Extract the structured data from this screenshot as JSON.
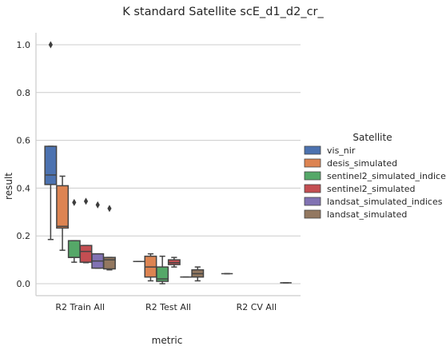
{
  "chart_data": {
    "type": "box",
    "title": "K standard Satellite scE_d1_d2_cr_",
    "xlabel": "metric",
    "ylabel": "result",
    "categories": [
      "R2 Train All",
      "R2 Test All",
      "R2 CV All"
    ],
    "ylim": [
      -0.05,
      1.05
    ],
    "yticks": [
      "0.0",
      "0.2",
      "0.4",
      "0.6",
      "0.8",
      "1.0"
    ],
    "grid": "horizontal",
    "legend": {
      "title": "Satellite",
      "placement": "right",
      "entries": [
        "vis_nir",
        "desis_simulated",
        "sentinel2_simulated_indices",
        "sentinel2_simulated",
        "landsat_simulated_indices",
        "landsat_simulated"
      ]
    },
    "colors": [
      "#4c72b0",
      "#dd8452",
      "#55a868",
      "#c44e52",
      "#8172b3",
      "#937860"
    ],
    "series": [
      {
        "name": "vis_nir",
        "boxes": [
          {
            "q1": 0.415,
            "median": 0.455,
            "q3": 0.575,
            "whislo": 0.185,
            "whishi": 0.575,
            "fliers": [
              1.0
            ]
          },
          {
            "q1": 0.093,
            "median": 0.093,
            "q3": 0.093,
            "whislo": 0.093,
            "whishi": 0.093,
            "fliers": []
          },
          {
            "q1": 0.042,
            "median": 0.042,
            "q3": 0.042,
            "whislo": 0.042,
            "whishi": 0.042,
            "fliers": []
          }
        ]
      },
      {
        "name": "desis_simulated",
        "boxes": [
          {
            "q1": 0.233,
            "median": 0.24,
            "q3": 0.41,
            "whislo": 0.14,
            "whishi": 0.45,
            "fliers": []
          },
          {
            "q1": 0.028,
            "median": 0.07,
            "q3": 0.115,
            "whislo": 0.012,
            "whishi": 0.125,
            "fliers": []
          },
          null
        ]
      },
      {
        "name": "sentinel2_simulated_indices",
        "boxes": [
          {
            "q1": 0.11,
            "median": 0.11,
            "q3": 0.18,
            "whislo": 0.09,
            "whishi": 0.18,
            "fliers": [
              0.34
            ]
          },
          {
            "q1": 0.01,
            "median": 0.02,
            "q3": 0.07,
            "whislo": 0.0,
            "whishi": 0.115,
            "fliers": []
          },
          null
        ]
      },
      {
        "name": "sentinel2_simulated",
        "boxes": [
          {
            "q1": 0.09,
            "median": 0.135,
            "q3": 0.16,
            "whislo": 0.088,
            "whishi": 0.16,
            "fliers": [
              0.345
            ]
          },
          {
            "q1": 0.08,
            "median": 0.088,
            "q3": 0.1,
            "whislo": 0.07,
            "whishi": 0.11,
            "fliers": []
          },
          null
        ]
      },
      {
        "name": "landsat_simulated_indices",
        "boxes": [
          {
            "q1": 0.065,
            "median": 0.095,
            "q3": 0.125,
            "whislo": 0.065,
            "whishi": 0.125,
            "fliers": [
              0.33
            ]
          },
          {
            "q1": 0.028,
            "median": 0.028,
            "q3": 0.028,
            "whislo": 0.028,
            "whishi": 0.028,
            "fliers": []
          },
          null
        ]
      },
      {
        "name": "landsat_simulated",
        "boxes": [
          {
            "q1": 0.062,
            "median": 0.1,
            "q3": 0.11,
            "whislo": 0.058,
            "whishi": 0.11,
            "fliers": [
              0.315
            ]
          },
          {
            "q1": 0.028,
            "median": 0.042,
            "q3": 0.058,
            "whislo": 0.012,
            "whishi": 0.07,
            "fliers": []
          },
          {
            "q1": 0.004,
            "median": 0.004,
            "q3": 0.004,
            "whislo": 0.004,
            "whishi": 0.004,
            "fliers": []
          }
        ]
      }
    ]
  }
}
